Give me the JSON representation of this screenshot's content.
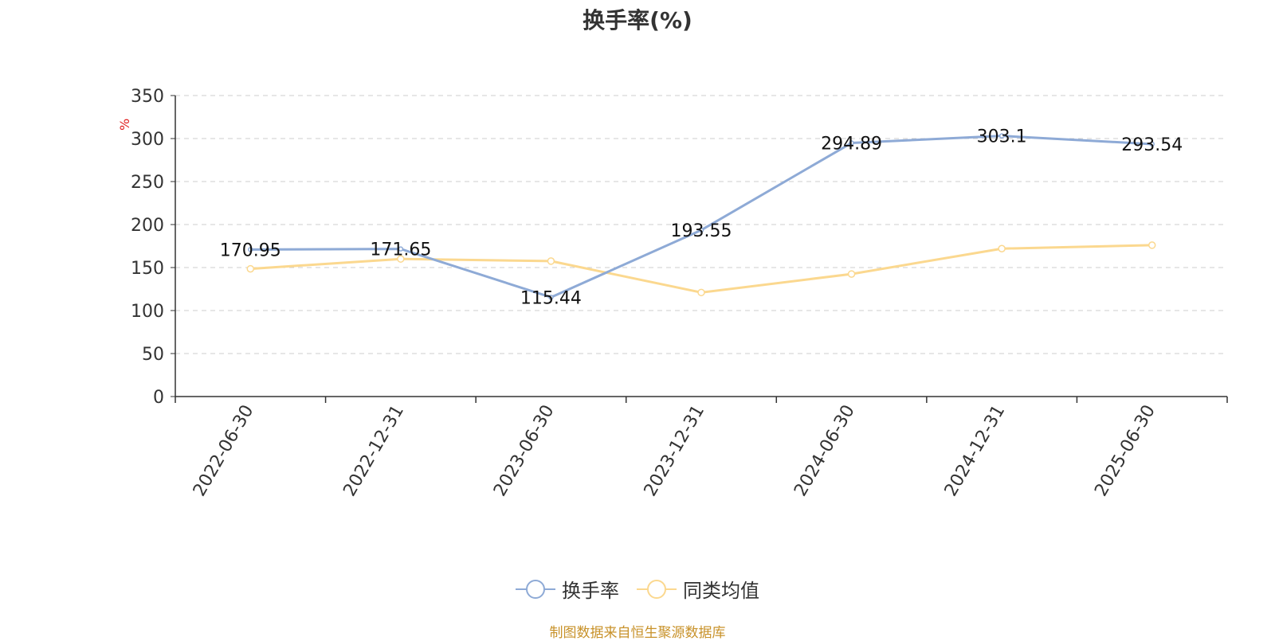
{
  "chart_data": {
    "type": "line",
    "title": "换手率(%)",
    "ylabel": "%",
    "ylim": [
      0,
      350
    ],
    "yticks": [
      0,
      50,
      100,
      150,
      200,
      250,
      300,
      350
    ],
    "grid": true,
    "legend_position": "bottom-center",
    "categories": [
      "2022-06-30",
      "2022-12-31",
      "2023-06-30",
      "2023-12-31",
      "2024-06-30",
      "2024-12-31",
      "2025-06-30"
    ],
    "series": [
      {
        "name": "换手率",
        "color": "#8eaad6",
        "values": [
          170.95,
          171.65,
          115.44,
          193.55,
          294.89,
          303.1,
          293.54
        ],
        "data_labels": [
          "170.95",
          "171.65",
          "115.44",
          "193.55",
          "294.89",
          "303.1",
          "293.54"
        ]
      },
      {
        "name": "同类均值",
        "color": "#fbd88f",
        "values": [
          148.5,
          160,
          157.5,
          121,
          142.5,
          172,
          176
        ]
      }
    ]
  },
  "legend": {
    "series1_label": "换手率",
    "series2_label": "同类均值"
  },
  "source_note": "制图数据来自恒生聚源数据库"
}
